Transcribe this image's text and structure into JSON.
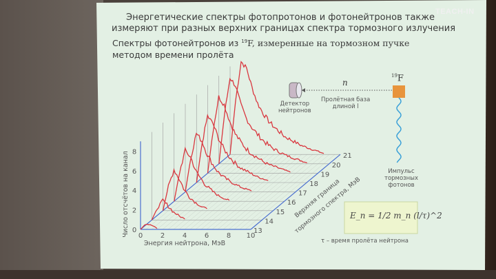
{
  "logo": "TEACH-IN",
  "slide": {
    "title_line1": "Энергетические спектры фотопротонов и фотонейтронов также",
    "title_line2": "измеряют при разных верхних границах спектра тормозного излучения",
    "subtitle_line1_a": "Спектры фотонейтронов из ",
    "subtitle_line1_sup": "19",
    "subtitle_line1_b": "F, измеренные на тормозном пучке",
    "subtitle_line2": "методом времени пролёта"
  },
  "diagram": {
    "detector_label_1": "Детектор",
    "detector_label_2": "нейтронов",
    "particle": "n",
    "base_label_1": "Пролётная база",
    "base_label_2": "длиной l",
    "target_sup": "19",
    "target": "F",
    "pulse_label_1": "Импульс",
    "pulse_label_2": "тормозных",
    "pulse_label_3": "фотонов",
    "formula": "E_n = 1/2 m_n (l/τ)^2",
    "caption": "τ – время пролёта нейтрона",
    "colors": {
      "target": "#e8943c",
      "wave": "#3aa0d8"
    }
  },
  "chart_data": {
    "type": "line",
    "subtype": "3d-waterfall",
    "xlabel": "Энергия нейтрона, МэВ",
    "ylabel": "Число отсчётов на канал",
    "zlabel_1": "Верхняя граница",
    "zlabel_2": "тормозного спектра, МэВ",
    "xlim": [
      0,
      10
    ],
    "ylim": [
      0,
      9
    ],
    "x_ticks": [
      "0",
      "2",
      "4",
      "6",
      "8",
      "10"
    ],
    "y_ticks": [
      "0",
      "2",
      "4",
      "6",
      "8"
    ],
    "z_ticks": [
      "13",
      "14",
      "15",
      "16",
      "17",
      "18",
      "19",
      "20",
      "21"
    ],
    "x_step": 0.5,
    "series": [
      {
        "z": 13,
        "values": [
          0,
          0.6,
          0.5,
          0.1
        ]
      },
      {
        "z": 14,
        "values": [
          0,
          1.2,
          2.0,
          1.4,
          0.8,
          0.4,
          0.1
        ]
      },
      {
        "z": 15,
        "values": [
          0,
          2.5,
          4.2,
          3.2,
          2.0,
          1.3,
          0.8,
          0.4,
          0.2
        ]
      },
      {
        "z": 16,
        "values": [
          0,
          3.0,
          5.2,
          4.5,
          3.0,
          2.2,
          1.5,
          1.0,
          0.6,
          0.3,
          0.1
        ]
      },
      {
        "z": 17,
        "values": [
          0,
          3.5,
          6.0,
          5.2,
          3.8,
          2.8,
          2.0,
          1.5,
          1.1,
          0.8,
          0.5,
          0.3,
          0.1
        ]
      },
      {
        "z": 18,
        "values": [
          0,
          4.0,
          6.8,
          6.0,
          4.5,
          3.4,
          2.6,
          2.0,
          1.5,
          1.2,
          0.9,
          0.6,
          0.4,
          0.2
        ]
      },
      {
        "z": 19,
        "values": [
          0,
          4.5,
          7.8,
          7.0,
          5.3,
          4.0,
          3.2,
          2.5,
          2.0,
          1.6,
          1.2,
          0.9,
          0.7,
          0.5,
          0.3,
          0.1
        ]
      },
      {
        "z": 20,
        "values": [
          0,
          5.0,
          8.8,
          8.0,
          6.0,
          4.6,
          3.7,
          3.0,
          2.4,
          1.9,
          1.5,
          1.2,
          0.9,
          0.7,
          0.5,
          0.3,
          0.1
        ]
      },
      {
        "z": 21,
        "values": [
          0,
          5.5,
          9.5,
          8.8,
          6.8,
          5.2,
          4.2,
          3.4,
          2.8,
          2.3,
          1.8,
          1.5,
          1.2,
          0.9,
          0.7,
          0.5,
          0.3,
          0.1
        ]
      }
    ],
    "grid": true,
    "colors": {
      "spectra": "#d9363e",
      "axes": "#4a6fd0",
      "grid": "#9a9a9a"
    }
  }
}
